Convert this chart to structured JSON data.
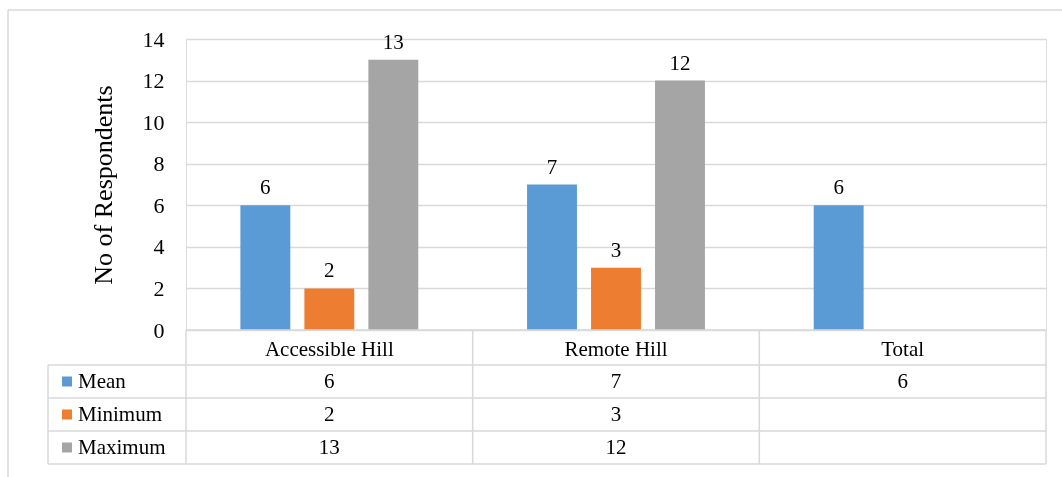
{
  "chart_data": {
    "type": "bar",
    "ylabel": "No of Respondents",
    "categories": [
      "Accessible Hill",
      "Remote Hill",
      "Total"
    ],
    "series": [
      {
        "name": "Mean",
        "color": "#5b9bd5",
        "values": [
          6,
          7,
          6
        ]
      },
      {
        "name": "Minimum",
        "color": "#ed7d31",
        "values": [
          2,
          3,
          null
        ]
      },
      {
        "name": "Maximum",
        "color": "#a5a5a5",
        "values": [
          13,
          12,
          null
        ]
      }
    ],
    "annotations": [
      "6",
      "2",
      "13",
      "7",
      "3",
      "12",
      "6"
    ],
    "ylim": [
      0,
      14
    ],
    "yticks": [
      0,
      2,
      4,
      6,
      8,
      10,
      12,
      14
    ],
    "grid": "y",
    "legend": "bottom",
    "data_labels": true
  }
}
